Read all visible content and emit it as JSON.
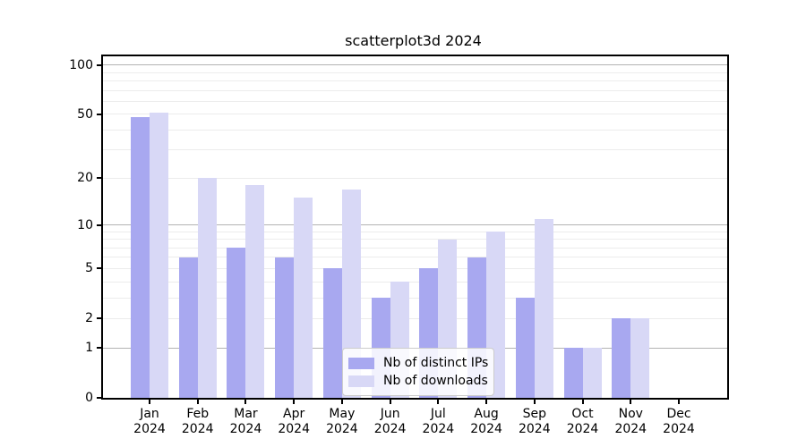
{
  "chart_data": {
    "type": "bar",
    "title": "scatterplot3d 2024",
    "xlabel": "",
    "ylabel": "",
    "y_scale": "log1p",
    "ylim": [
      0,
      112
    ],
    "grid": true,
    "legend_position": "lower-center-inside",
    "categories": [
      {
        "m": "Jan",
        "y": "2024"
      },
      {
        "m": "Feb",
        "y": "2024"
      },
      {
        "m": "Mar",
        "y": "2024"
      },
      {
        "m": "Apr",
        "y": "2024"
      },
      {
        "m": "May",
        "y": "2024"
      },
      {
        "m": "Jun",
        "y": "2024"
      },
      {
        "m": "Jul",
        "y": "2024"
      },
      {
        "m": "Aug",
        "y": "2024"
      },
      {
        "m": "Sep",
        "y": "2024"
      },
      {
        "m": "Oct",
        "y": "2024"
      },
      {
        "m": "Nov",
        "y": "2024"
      },
      {
        "m": "Dec",
        "y": "2024"
      }
    ],
    "series": [
      {
        "name": "Nb of distinct IPs",
        "color": "#a8a8f0",
        "values": [
          48,
          6,
          7,
          6,
          5,
          3,
          5,
          6,
          3,
          1,
          2,
          0
        ]
      },
      {
        "name": "Nb of downloads",
        "color": "#d8d8f6",
        "values": [
          51,
          20,
          18,
          15,
          17,
          4,
          8,
          9,
          11,
          1,
          2,
          0
        ]
      }
    ],
    "y_ticks": [
      100,
      50,
      20,
      10,
      5,
      2,
      1,
      0
    ],
    "major_gridlines": [
      100,
      10,
      1
    ],
    "minor_gridlines": [
      90,
      80,
      70,
      60,
      50,
      40,
      30,
      20,
      9,
      8,
      7,
      6,
      5,
      4,
      3,
      2
    ],
    "colors": {
      "major_grid": "#b3b3b3",
      "minor_grid": "#ececec",
      "spine": "#000000",
      "legend_border": "#cccccc"
    }
  }
}
